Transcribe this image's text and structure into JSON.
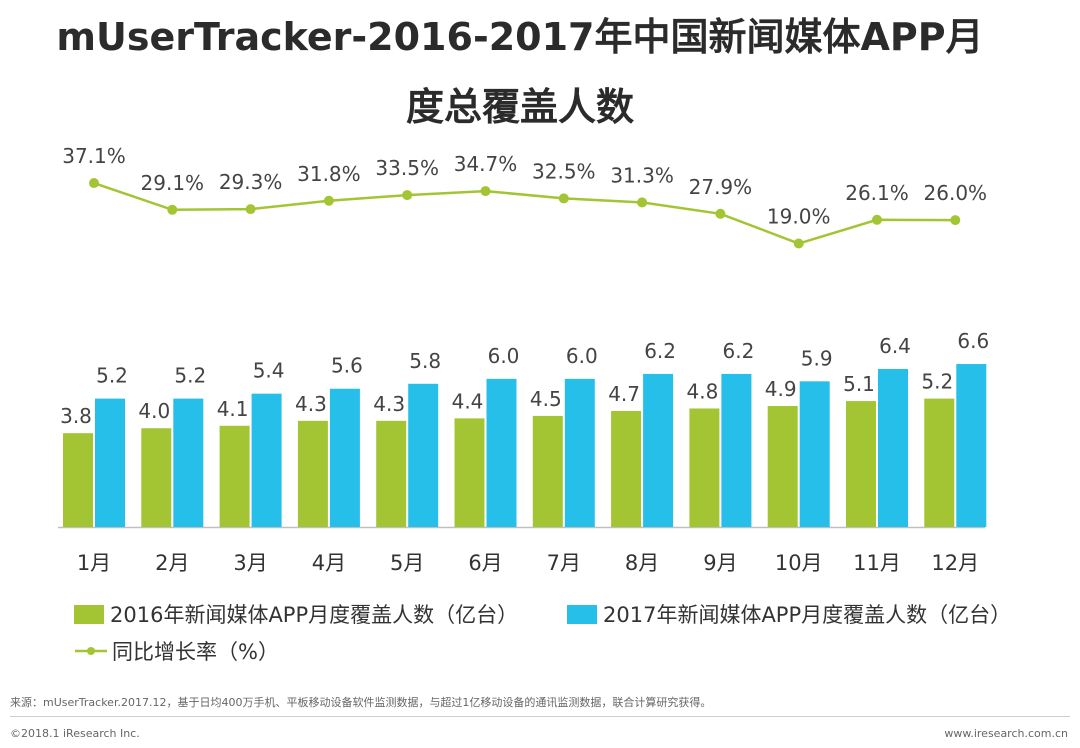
{
  "title_line1": "mUserTracker-2016-2017年中国新闻媒体APP月",
  "title_line2": "度总覆盖人数",
  "chart_data": {
    "type": "bar+line",
    "categories": [
      "1月",
      "2月",
      "3月",
      "4月",
      "5月",
      "6月",
      "7月",
      "8月",
      "9月",
      "10月",
      "11月",
      "12月"
    ],
    "series": [
      {
        "name": "2016年新闻媒体APP月度覆盖人数（亿台）",
        "type": "bar",
        "color": "#a3c533",
        "values": [
          3.8,
          4.0,
          4.1,
          4.3,
          4.3,
          4.4,
          4.5,
          4.7,
          4.8,
          4.9,
          5.1,
          5.2
        ]
      },
      {
        "name": "2017年新闻媒体APP月度覆盖人数（亿台）",
        "type": "bar",
        "color": "#25bfea",
        "values": [
          5.2,
          5.2,
          5.4,
          5.6,
          5.8,
          6.0,
          6.0,
          6.2,
          6.2,
          5.9,
          6.4,
          6.6
        ]
      },
      {
        "name": "同比增长率（%）",
        "type": "line",
        "color": "#a3c533",
        "values": [
          37.1,
          29.1,
          29.3,
          31.8,
          33.5,
          34.7,
          32.5,
          31.3,
          27.9,
          19.0,
          26.1,
          26.0
        ],
        "labels": [
          "37.1%",
          "29.1%",
          "29.3%",
          "31.8%",
          "33.5%",
          "34.7%",
          "32.5%",
          "31.3%",
          "27.9%",
          "19.0%",
          "26.1%",
          "26.0%"
        ]
      }
    ],
    "bar_ylim": [
      0,
      8.1
    ],
    "line_ylim": [
      -6,
      47
    ]
  },
  "legend": {
    "bar2016": "2016年新闻媒体APP月度覆盖人数（亿台）",
    "bar2017": "2017年新闻媒体APP月度覆盖人数（亿台）",
    "line": "同比增长率（%）"
  },
  "footer": {
    "source": "来源：mUserTracker.2017.12，基于日均400万手机、平板移动设备软件监测数据，与超过1亿移动设备的通讯监测数据，联合计算研究获得。",
    "copyright": "©2018.1 iResearch Inc.",
    "website": "www.iresearch.com.cn"
  },
  "colors": {
    "green": "#a3c533",
    "blue": "#25bfea",
    "axis": "#bfbfbf"
  }
}
